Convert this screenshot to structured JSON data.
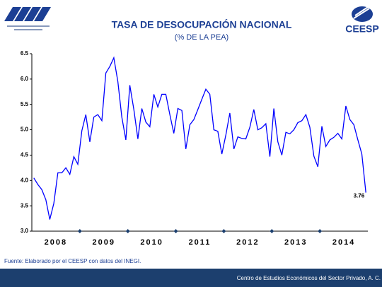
{
  "chart_data": {
    "type": "line",
    "title": "TASA DE DESOCUPACIÓN NACIONAL",
    "subtitle": "(% DE LA PEA)",
    "source": "Fuente: Elaborado por el CEESP con datos del INEGI.",
    "year_labels": [
      "2008",
      "2009",
      "2010",
      "2011",
      "2012",
      "2013",
      "2014"
    ],
    "series": [
      {
        "color": "#0000ff",
        "values": [
          4.05,
          3.92,
          3.82,
          3.62,
          3.23,
          3.55,
          4.15,
          4.15,
          4.25,
          4.12,
          4.47,
          4.32,
          4.98,
          5.3,
          4.76,
          5.25,
          5.3,
          5.18,
          6.12,
          6.25,
          6.42,
          5.95,
          5.25,
          4.8,
          5.88,
          5.4,
          4.82,
          5.42,
          5.15,
          5.06,
          5.7,
          5.45,
          5.7,
          5.7,
          5.3,
          4.93,
          5.42,
          5.38,
          4.62,
          5.1,
          5.2,
          5.4,
          5.6,
          5.8,
          5.7,
          5.0,
          4.97,
          4.52,
          4.9,
          5.33,
          4.62,
          4.86,
          4.83,
          4.82,
          5.05,
          5.4,
          5.0,
          5.04,
          5.12,
          4.47,
          5.42,
          4.76,
          4.5,
          4.95,
          4.92,
          5.0,
          5.14,
          5.18,
          5.3,
          5.05,
          4.48,
          4.27,
          5.07,
          4.67,
          4.8,
          4.85,
          4.93,
          4.82,
          5.47,
          5.2,
          5.1,
          4.8,
          4.52,
          3.76
        ]
      }
    ],
    "ylim": [
      3,
      6.5
    ],
    "yticks": [
      {
        "value": 3,
        "label": "3.0"
      },
      {
        "value": 3.5,
        "label": "3.5"
      },
      {
        "value": 4,
        "label": "4.0"
      },
      {
        "value": 4.5,
        "label": "4.5"
      },
      {
        "value": 5,
        "label": "5.0"
      },
      {
        "value": 5.5,
        "label": "5.5"
      },
      {
        "value": 6,
        "label": "6.0"
      },
      {
        "value": 6.5,
        "label": "6.5"
      }
    ]
  },
  "logo_text": "CEESP",
  "footer": "Centro de Estudios Económicos del Sector Privado, A. C."
}
